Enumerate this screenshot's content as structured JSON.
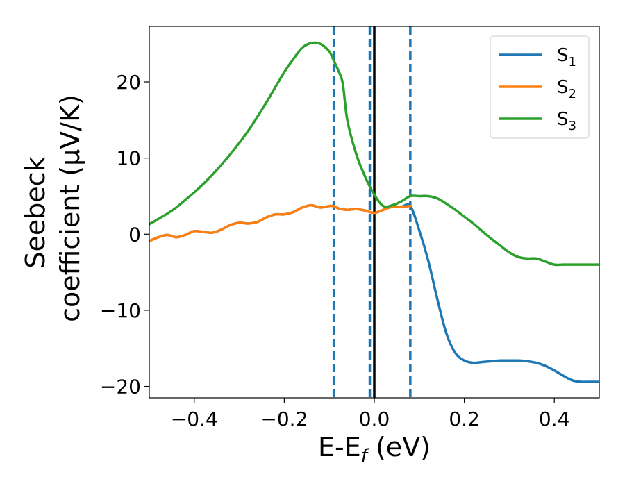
{
  "chart_data": {
    "type": "line",
    "xlabel": "E-E",
    "xlabel_sub": "f",
    "xlabel_unit": " (eV)",
    "ylabel_line1": "Seebeck",
    "ylabel_line2": "coefficient  (μV/K)",
    "xlim": [
      -0.5,
      0.5
    ],
    "ylim": [
      -21.5,
      27.3
    ],
    "xticks": [
      -0.4,
      -0.2,
      0.0,
      0.2,
      0.4
    ],
    "xtick_labels": [
      "−0.4",
      "−0.2",
      "0.0",
      "0.2",
      "0.4"
    ],
    "yticks": [
      -20,
      -10,
      0,
      10,
      20
    ],
    "ytick_labels": [
      "−20",
      "−10",
      "0",
      "10",
      "20"
    ],
    "grid": false,
    "legend_position": "top-right",
    "series": [
      {
        "name": "S",
        "name_sub": "1",
        "color": "#1f77b4",
        "x": [
          -0.5,
          -0.48,
          -0.46,
          -0.44,
          -0.42,
          -0.4,
          -0.38,
          -0.36,
          -0.34,
          -0.32,
          -0.3,
          -0.28,
          -0.26,
          -0.24,
          -0.22,
          -0.2,
          -0.18,
          -0.16,
          -0.14,
          -0.12,
          -0.1,
          -0.09,
          -0.08,
          -0.06,
          -0.04,
          -0.02,
          0.0,
          0.02,
          0.04,
          0.06,
          0.08,
          0.1,
          0.12,
          0.14,
          0.16,
          0.18,
          0.2,
          0.22,
          0.24,
          0.26,
          0.28,
          0.3,
          0.32,
          0.34,
          0.36,
          0.38,
          0.4,
          0.42,
          0.44,
          0.46,
          0.48,
          0.5
        ],
        "y": [
          -0.9,
          -0.4,
          -0.1,
          -0.4,
          -0.1,
          0.4,
          0.3,
          0.2,
          0.6,
          1.2,
          1.5,
          1.4,
          1.6,
          2.2,
          2.6,
          2.6,
          2.9,
          3.5,
          3.8,
          3.5,
          3.7,
          3.7,
          3.4,
          3.2,
          3.3,
          3.1,
          2.8,
          3.2,
          3.6,
          3.6,
          3.7,
          0.5,
          -3.5,
          -8.5,
          -13.0,
          -15.6,
          -16.6,
          -16.9,
          -16.8,
          -16.7,
          -16.6,
          -16.6,
          -16.6,
          -16.7,
          -16.9,
          -17.3,
          -17.9,
          -18.6,
          -19.2,
          -19.4,
          -19.4,
          -19.4
        ]
      },
      {
        "name": "S",
        "name_sub": "2",
        "color": "#ff7f0e",
        "x": [
          -0.5,
          -0.48,
          -0.46,
          -0.44,
          -0.42,
          -0.4,
          -0.38,
          -0.36,
          -0.34,
          -0.32,
          -0.3,
          -0.28,
          -0.26,
          -0.24,
          -0.22,
          -0.2,
          -0.18,
          -0.16,
          -0.14,
          -0.12,
          -0.1,
          -0.09,
          -0.08,
          -0.06,
          -0.04,
          -0.02,
          0.0,
          0.02,
          0.04,
          0.06,
          0.08
        ],
        "y": [
          -0.9,
          -0.4,
          -0.1,
          -0.4,
          -0.1,
          0.4,
          0.3,
          0.2,
          0.6,
          1.2,
          1.5,
          1.4,
          1.6,
          2.2,
          2.6,
          2.6,
          2.9,
          3.5,
          3.8,
          3.5,
          3.7,
          3.7,
          3.4,
          3.2,
          3.3,
          3.1,
          2.8,
          3.2,
          3.6,
          3.6,
          3.7
        ]
      },
      {
        "name": "S",
        "name_sub": "3",
        "color": "#2ca02c",
        "x": [
          -0.5,
          -0.48,
          -0.46,
          -0.44,
          -0.42,
          -0.4,
          -0.38,
          -0.36,
          -0.34,
          -0.32,
          -0.3,
          -0.28,
          -0.26,
          -0.24,
          -0.22,
          -0.2,
          -0.18,
          -0.16,
          -0.14,
          -0.12,
          -0.1,
          -0.09,
          -0.08,
          -0.07,
          -0.06,
          -0.04,
          -0.02,
          0.0,
          0.02,
          0.04,
          0.06,
          0.08,
          0.1,
          0.12,
          0.14,
          0.16,
          0.18,
          0.2,
          0.22,
          0.24,
          0.26,
          0.28,
          0.3,
          0.32,
          0.34,
          0.36,
          0.38,
          0.4,
          0.42,
          0.44,
          0.46,
          0.48,
          0.5
        ],
        "y": [
          1.3,
          2.0,
          2.7,
          3.5,
          4.5,
          5.5,
          6.6,
          7.8,
          9.1,
          10.5,
          12.0,
          13.6,
          15.4,
          17.3,
          19.3,
          21.3,
          23.0,
          24.5,
          25.1,
          25.0,
          24.0,
          22.8,
          21.5,
          19.8,
          15.0,
          10.5,
          7.5,
          5.2,
          3.7,
          3.8,
          4.3,
          5.0,
          5.0,
          5.0,
          4.7,
          4.0,
          3.2,
          2.3,
          1.4,
          0.4,
          -0.6,
          -1.5,
          -2.4,
          -3.0,
          -3.2,
          -3.2,
          -3.6,
          -4.0,
          -4.0,
          -4.0,
          -4.0,
          -4.0,
          -4.0
        ]
      }
    ],
    "vertical_lines": [
      {
        "x": -0.09,
        "style": "dashed",
        "color": "#1f77b4"
      },
      {
        "x": -0.01,
        "style": "dashed",
        "color": "#1f77b4"
      },
      {
        "x": 0.0,
        "style": "solid",
        "color": "#000000"
      },
      {
        "x": 0.08,
        "style": "dashed",
        "color": "#1f77b4"
      }
    ]
  }
}
